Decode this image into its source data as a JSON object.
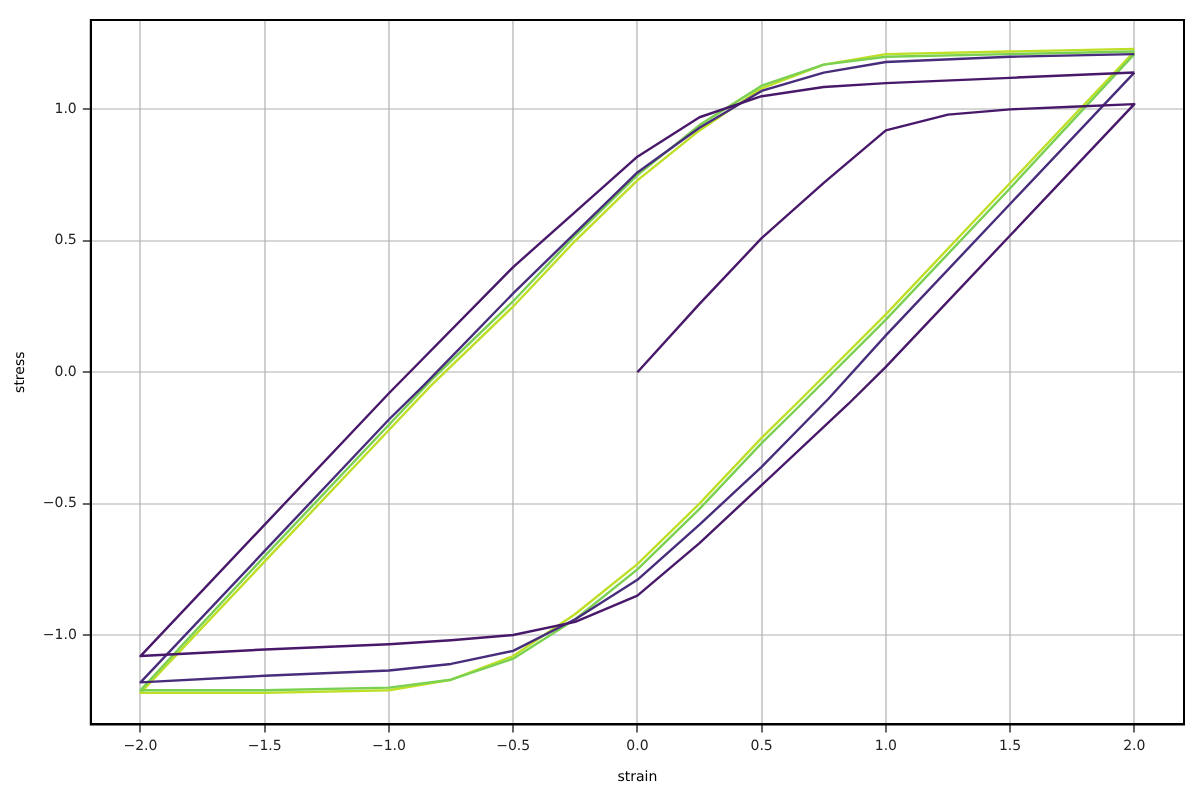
{
  "chart_data": {
    "type": "line",
    "xlabel": "strain",
    "ylabel": "stress",
    "xlim": [
      -2.2,
      2.2
    ],
    "ylim": [
      -1.34,
      1.34
    ],
    "xticks": [
      {
        "value": -2,
        "label": "−2.0"
      },
      {
        "value": -1.5,
        "label": "−1.5"
      },
      {
        "value": -1,
        "label": "−1.0"
      },
      {
        "value": -0.5,
        "label": "−0.5"
      },
      {
        "value": 0,
        "label": "0.0"
      },
      {
        "value": 0.5,
        "label": "0.5"
      },
      {
        "value": 1,
        "label": "1.0"
      },
      {
        "value": 1.5,
        "label": "1.5"
      },
      {
        "value": 2,
        "label": "2.0"
      }
    ],
    "yticks": [
      {
        "value": -1,
        "label": "−1.0"
      },
      {
        "value": -0.5,
        "label": "−0.5"
      },
      {
        "value": 0,
        "label": "0.0"
      },
      {
        "value": 0.5,
        "label": "0.5"
      },
      {
        "value": 1,
        "label": "1.0"
      }
    ],
    "grid": true,
    "line_style": "solid",
    "marker": "none",
    "series": [
      {
        "color": "#48186a",
        "x": [
          0,
          0.25,
          0.5,
          0.75,
          0.9,
          1.0,
          1.25,
          1.5,
          1.75,
          2.0,
          1.5,
          1.0,
          0.85,
          0.5,
          0.25,
          0,
          -0.25,
          -0.5,
          -0.75,
          -1,
          -1.5,
          -2,
          -1.5,
          -1.0,
          -0.5,
          0,
          0.25,
          0.5,
          0.75,
          1,
          1.5,
          2
        ],
        "values": [
          0,
          0.26,
          0.51,
          0.72,
          0.84,
          0.92,
          0.98,
          1.0,
          1.01,
          1.02,
          0.52,
          0.02,
          -0.12,
          -0.43,
          -0.65,
          -0.85,
          -0.95,
          -1.0,
          -1.02,
          -1.035,
          -1.055,
          -1.08,
          -0.58,
          -0.08,
          0.4,
          0.82,
          0.97,
          1.05,
          1.085,
          1.1,
          1.12,
          1.14
        ]
      },
      {
        "color": "#472d7b",
        "x": [
          2,
          1.5,
          1,
          0.77,
          0.5,
          0.25,
          0,
          -0.25,
          -0.5,
          -0.75,
          -1,
          -1.5,
          -2,
          -1.5,
          -1,
          -0.86,
          -0.5,
          0,
          0.25,
          0.5,
          0.75,
          1,
          1.5,
          2
        ],
        "values": [
          1.14,
          0.64,
          0.14,
          -0.1,
          -0.36,
          -0.58,
          -0.79,
          -0.94,
          -1.06,
          -1.11,
          -1.135,
          -1.155,
          -1.18,
          -0.68,
          -0.18,
          -0.05,
          0.3,
          0.76,
          0.93,
          1.07,
          1.14,
          1.18,
          1.2,
          1.21
        ]
      },
      {
        "color": "#7ad151",
        "x": [
          2,
          1.5,
          1,
          0.64,
          0.5,
          0.25,
          0,
          -0.25,
          -0.5,
          -0.75,
          -1,
          -1.5,
          -2,
          -1.5,
          -1,
          -0.83,
          -0.5,
          -0.25,
          0,
          0.25,
          0.5,
          0.75,
          1,
          1.5,
          2
        ],
        "values": [
          1.21,
          0.7,
          0.2,
          -0.14,
          -0.27,
          -0.52,
          -0.75,
          -0.94,
          -1.09,
          -1.17,
          -1.2,
          -1.21,
          -1.21,
          -0.7,
          -0.2,
          -0.03,
          0.27,
          0.52,
          0.75,
          0.94,
          1.09,
          1.17,
          1.2,
          1.21,
          1.22
        ]
      },
      {
        "color": "#bddf26",
        "x": [
          2,
          1.5,
          1,
          0.64,
          0.5,
          0.25,
          0,
          -0.25,
          -0.5,
          -0.75,
          -1,
          -1.5,
          -2,
          -1.5,
          -1,
          -0.83,
          -0.5,
          -0.25,
          0,
          0.25,
          0.5,
          0.75,
          1,
          1.5,
          2
        ],
        "values": [
          1.22,
          0.72,
          0.22,
          -0.12,
          -0.25,
          -0.5,
          -0.73,
          -0.92,
          -1.08,
          -1.17,
          -1.21,
          -1.22,
          -1.22,
          -0.72,
          -0.22,
          -0.05,
          0.25,
          0.5,
          0.73,
          0.92,
          1.08,
          1.17,
          1.21,
          1.22,
          1.23
        ]
      }
    ]
  }
}
